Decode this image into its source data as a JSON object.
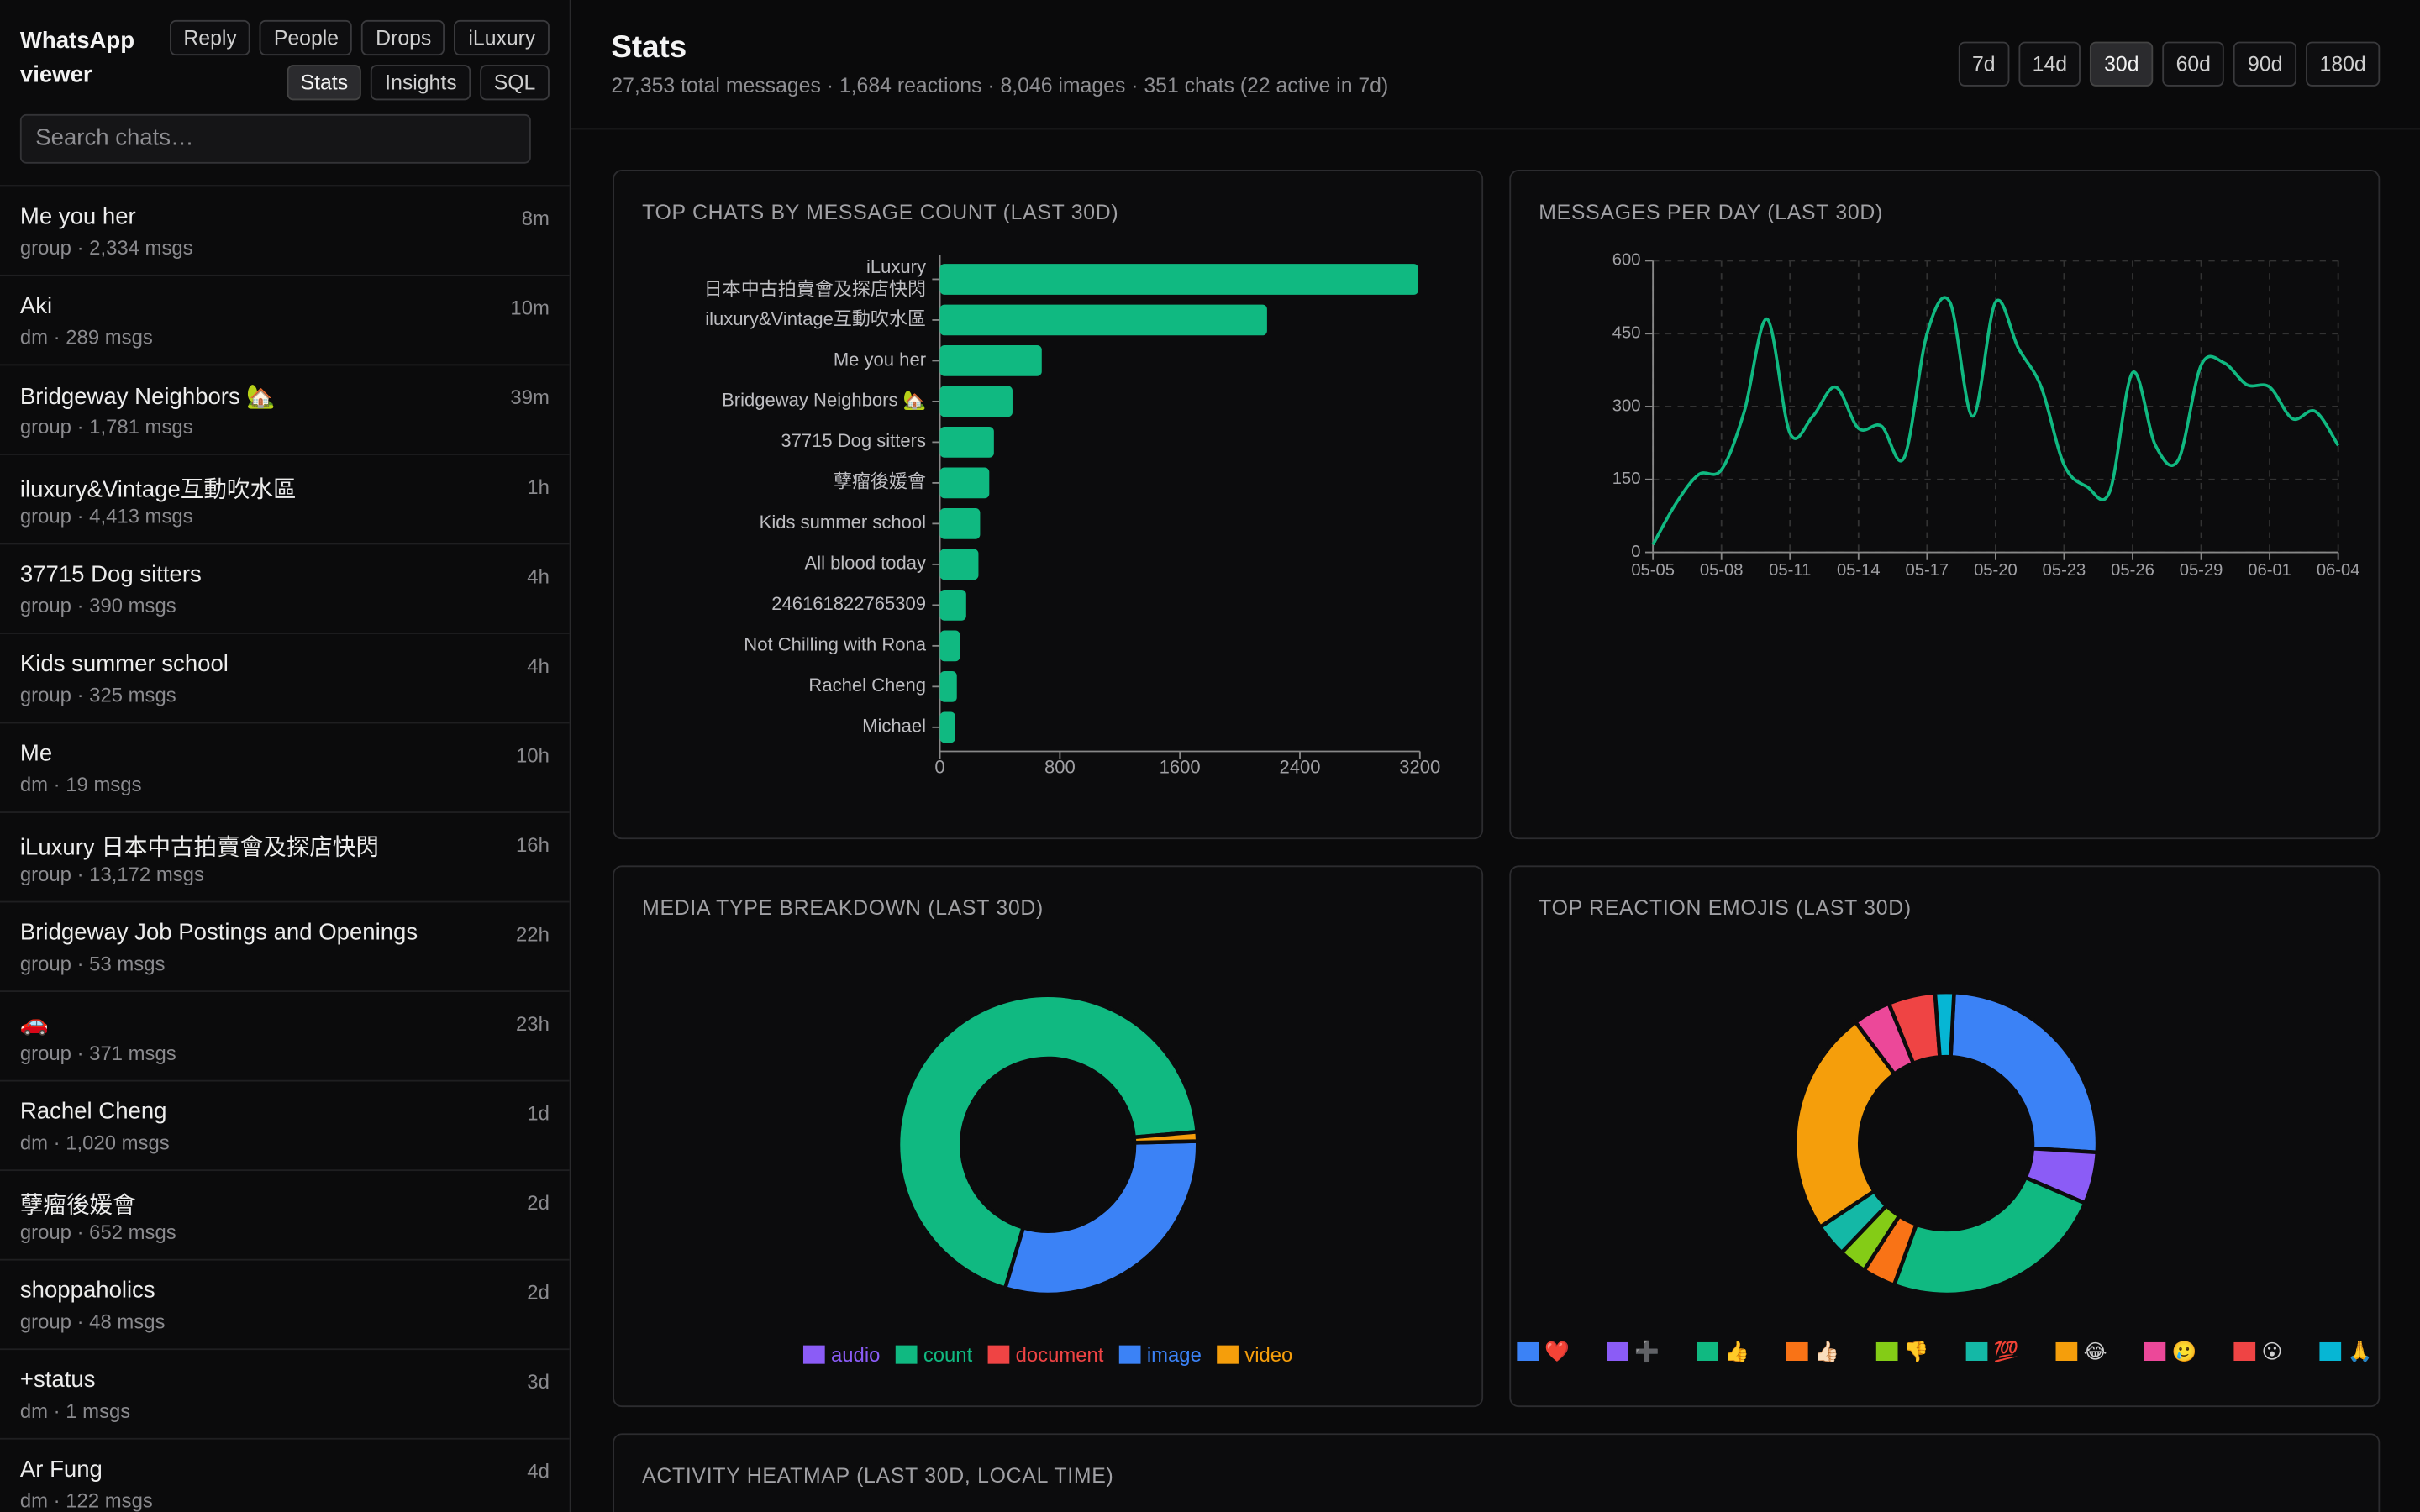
{
  "sidebar": {
    "title": "WhatsApp viewer",
    "nav": [
      {
        "label": "Reply",
        "active": false
      },
      {
        "label": "People",
        "active": false
      },
      {
        "label": "Drops",
        "active": false
      },
      {
        "label": "iLuxury",
        "active": false
      },
      {
        "label": "Stats",
        "active": true
      },
      {
        "label": "Insights",
        "active": false
      },
      {
        "label": "SQL",
        "active": false
      }
    ],
    "search_placeholder": "Search chats…",
    "chats": [
      {
        "name": "Me you her",
        "meta": "group · 2,334 msgs",
        "time": "8m"
      },
      {
        "name": "Aki",
        "meta": "dm · 289 msgs",
        "time": "10m"
      },
      {
        "name": "Bridgeway Neighbors 🏡",
        "meta": "group · 1,781 msgs",
        "time": "39m"
      },
      {
        "name": "iluxury&Vintage互動吹水區",
        "meta": "group · 4,413 msgs",
        "time": "1h"
      },
      {
        "name": "37715 Dog sitters",
        "meta": "group · 390 msgs",
        "time": "4h"
      },
      {
        "name": "Kids summer school",
        "meta": "group · 325 msgs",
        "time": "4h"
      },
      {
        "name": "Me",
        "meta": "dm · 19 msgs",
        "time": "10h"
      },
      {
        "name": "iLuxury 日本中古拍賣會及探店快閃",
        "meta": "group · 13,172 msgs",
        "time": "16h"
      },
      {
        "name": "Bridgeway Job Postings and Openings",
        "meta": "group · 53 msgs",
        "time": "22h"
      },
      {
        "name": "🚗",
        "meta": "group · 371 msgs",
        "time": "23h"
      },
      {
        "name": "Rachel Cheng",
        "meta": "dm · 1,020 msgs",
        "time": "1d"
      },
      {
        "name": "孽瘤後媛會",
        "meta": "group · 652 msgs",
        "time": "2d"
      },
      {
        "name": "shoppaholics",
        "meta": "group · 48 msgs",
        "time": "2d"
      },
      {
        "name": "+status",
        "meta": "dm · 1 msgs",
        "time": "3d"
      },
      {
        "name": "Ar Fung",
        "meta": "dm · 122 msgs",
        "time": "4d"
      }
    ]
  },
  "header": {
    "title": "Stats",
    "subtitle": "27,353 total messages · 1,684 reactions · 8,046 images · 351 chats (22 active in 7d)",
    "ranges": [
      {
        "label": "7d",
        "active": false
      },
      {
        "label": "14d",
        "active": false
      },
      {
        "label": "30d",
        "active": true
      },
      {
        "label": "60d",
        "active": false
      },
      {
        "label": "90d",
        "active": false
      },
      {
        "label": "180d",
        "active": false
      }
    ]
  },
  "chart_data": [
    {
      "type": "bar",
      "orientation": "horizontal",
      "title": "TOP CHATS BY MESSAGE COUNT (LAST 30D)",
      "categories": [
        "iLuxury 日本中古拍賣會及探店快閃",
        "iluxury&Vintage互動吹水區",
        "Me you her",
        "Bridgeway Neighbors 🏡",
        "37715 Dog sitters",
        "孽瘤後媛會",
        "Kids summer school",
        "All blood today",
        "246161822765309",
        "Not Chilling with Rona",
        "Rachel Cheng",
        "Michael"
      ],
      "values": [
        3190,
        2181,
        679,
        484,
        360,
        329,
        268,
        257,
        175,
        134,
        113,
        103
      ],
      "color": "#10b981",
      "xlim": [
        0,
        3200
      ],
      "xticks": [
        0,
        800,
        1600,
        2400,
        3200
      ]
    },
    {
      "type": "line",
      "title": "MESSAGES PER DAY (LAST 30D)",
      "categories": [
        "05-05",
        null,
        null,
        "05-08",
        null,
        null,
        "05-11",
        null,
        null,
        "05-14",
        null,
        null,
        "05-17",
        null,
        null,
        "05-20",
        null,
        null,
        "05-23",
        null,
        null,
        "05-26",
        null,
        null,
        "05-29",
        null,
        null,
        "06-01",
        null,
        null,
        "06-04"
      ],
      "values": [
        16,
        100,
        160,
        170,
        290,
        480,
        245,
        280,
        340,
        255,
        260,
        195,
        450,
        515,
        280,
        515,
        420,
        340,
        180,
        135,
        125,
        370,
        220,
        190,
        385,
        390,
        345,
        340,
        275,
        290,
        220
      ],
      "color": "#10b981",
      "ylim": [
        0,
        600
      ],
      "yticks": [
        0,
        150,
        300,
        450,
        600
      ],
      "grid": true
    },
    {
      "type": "pie",
      "donut": true,
      "direction": "counterclockwise",
      "title": "MEDIA TYPE BREAKDOWN (LAST 30D)",
      "categories": [
        "audio",
        "count",
        "document",
        "image",
        "video"
      ],
      "values": [
        0,
        69,
        0,
        30,
        1
      ],
      "colors": [
        "#8b5cf6",
        "#10b981",
        "#ef4444",
        "#3b82f6",
        "#f59e0b"
      ],
      "legend_text_colored": true
    },
    {
      "type": "pie",
      "donut": true,
      "direction": "clockwise",
      "title": "TOP REACTION EMOJIS (LAST 30D)",
      "categories": [
        "❤️",
        "➕",
        "👍",
        "👍🏻",
        "👎",
        "💯",
        "😂",
        "🥲",
        "😮",
        "🙏"
      ],
      "values": [
        25,
        5.5,
        24,
        3.5,
        3,
        3.5,
        24,
        4,
        5,
        2
      ],
      "colors": [
        "#3b82f6",
        "#8b5cf6",
        "#10b981",
        "#f97316",
        "#84cc16",
        "#14b8a6",
        "#f59e0b",
        "#ec4899",
        "#ef4444",
        "#06b6d4"
      ],
      "legend_text_colored": false
    }
  ],
  "heatmap": {
    "title": "ACTIVITY HEATMAP (LAST 30D, LOCAL TIME)"
  }
}
